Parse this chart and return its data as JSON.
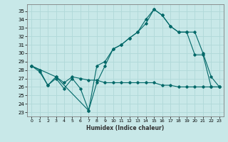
{
  "xlabel": "Humidex (Indice chaleur)",
  "background_color": "#c8e8e8",
  "grid_color": "#b0d8d8",
  "line_color": "#006868",
  "xlim": [
    -0.5,
    23.5
  ],
  "ylim": [
    22.5,
    35.8
  ],
  "yticks": [
    23,
    24,
    25,
    26,
    27,
    28,
    29,
    30,
    31,
    32,
    33,
    34,
    35
  ],
  "xticks": [
    0,
    1,
    2,
    3,
    4,
    5,
    6,
    7,
    8,
    9,
    10,
    11,
    12,
    13,
    14,
    15,
    16,
    17,
    18,
    19,
    20,
    21,
    22,
    23
  ],
  "line1_x": [
    0,
    1,
    2,
    3,
    4,
    5,
    6,
    7,
    8,
    9,
    10,
    11,
    12,
    13,
    14,
    15,
    16,
    17,
    18,
    19,
    20,
    21,
    22,
    23
  ],
  "line1_y": [
    28.5,
    27.8,
    26.2,
    27.0,
    25.8,
    27.0,
    25.8,
    23.2,
    28.5,
    29.0,
    30.5,
    31.0,
    31.8,
    32.5,
    34.0,
    35.2,
    34.5,
    33.2,
    32.5,
    32.5,
    29.8,
    29.8,
    26.0,
    26.0
  ],
  "line2_x": [
    0,
    1,
    2,
    3,
    4,
    5,
    6,
    7,
    8,
    9,
    10,
    11,
    12,
    13,
    14,
    15,
    16,
    17,
    18,
    19,
    20,
    21,
    22,
    23
  ],
  "line2_y": [
    28.5,
    28.0,
    26.2,
    27.2,
    26.5,
    27.2,
    27.0,
    26.8,
    26.8,
    26.5,
    26.5,
    26.5,
    26.5,
    26.5,
    26.5,
    26.5,
    26.2,
    26.2,
    26.0,
    26.0,
    26.0,
    26.0,
    26.0,
    26.0
  ],
  "line3_x": [
    0,
    3,
    7,
    8,
    9,
    10,
    11,
    12,
    13,
    14,
    15,
    16,
    17,
    18,
    19,
    20,
    21,
    22,
    23
  ],
  "line3_y": [
    28.5,
    27.2,
    23.2,
    26.5,
    28.5,
    30.5,
    31.0,
    31.8,
    32.5,
    33.5,
    35.2,
    34.5,
    33.2,
    32.5,
    32.5,
    32.5,
    30.0,
    27.2,
    26.0
  ]
}
